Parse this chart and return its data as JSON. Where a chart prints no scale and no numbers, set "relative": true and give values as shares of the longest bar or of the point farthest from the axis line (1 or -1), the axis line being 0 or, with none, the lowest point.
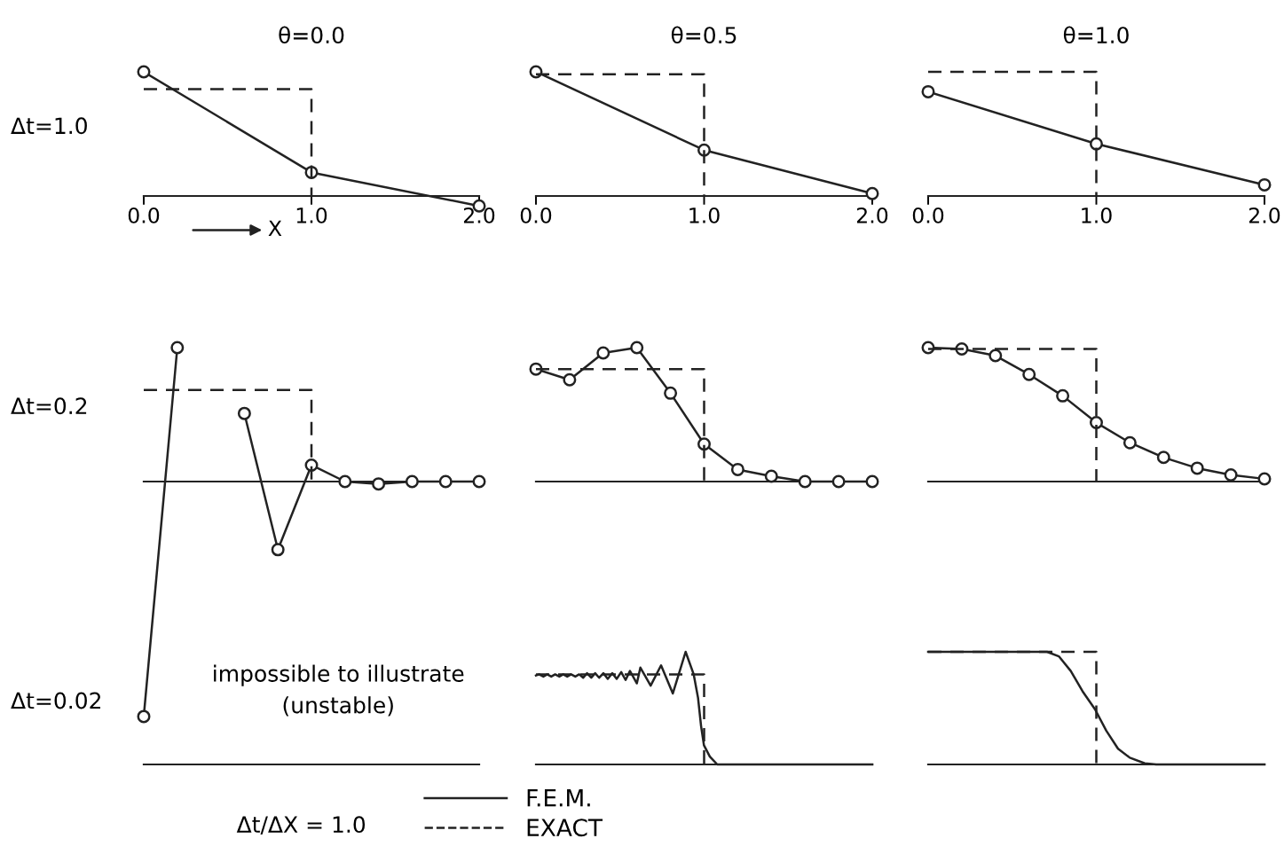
{
  "chart_data": [
    {
      "type": "line",
      "title": "θ=0.0",
      "ylabel": "Δt=1.0",
      "xlabel": "X",
      "relative": true,
      "xlim": [
        0,
        2
      ],
      "xticks": [
        {
          "value": 0,
          "label": "0.0"
        },
        {
          "value": 1,
          "label": "1.0"
        },
        {
          "value": 2,
          "label": "2.0"
        }
      ],
      "series": [
        {
          "color": "#222222",
          "marker": "circle",
          "line_style": "solid",
          "x": [
            0,
            1,
            2
          ],
          "values": [
            1,
            0.19,
            -0.08
          ]
        },
        {
          "color": "#222222",
          "line_style": "dashed",
          "x": [
            0,
            1,
            1
          ],
          "values": [
            0.86,
            0.86,
            0
          ]
        }
      ]
    },
    {
      "type": "line",
      "title": "θ=0.5",
      "relative": true,
      "xlim": [
        0,
        2
      ],
      "xticks": [
        {
          "value": 0,
          "label": "0.0"
        },
        {
          "value": 1,
          "label": "1.0"
        },
        {
          "value": 2,
          "label": "2.0"
        }
      ],
      "series": [
        {
          "color": "#222222",
          "marker": "circle",
          "line_style": "solid",
          "x": [
            0,
            1,
            2
          ],
          "values": [
            1,
            0.37,
            0.02
          ]
        },
        {
          "color": "#222222",
          "line_style": "dashed",
          "x": [
            0,
            1,
            1
          ],
          "values": [
            0.98,
            0.98,
            0
          ]
        }
      ]
    },
    {
      "type": "line",
      "title": "θ=1.0",
      "relative": true,
      "xlim": [
        0,
        2
      ],
      "xticks": [
        {
          "value": 0,
          "label": "0.0"
        },
        {
          "value": 1,
          "label": "1.0"
        },
        {
          "value": 2,
          "label": "2.0"
        }
      ],
      "series": [
        {
          "color": "#222222",
          "marker": "circle",
          "line_style": "solid",
          "x": [
            0,
            1,
            2
          ],
          "values": [
            0.84,
            0.42,
            0.09
          ]
        },
        {
          "color": "#222222",
          "line_style": "dashed",
          "x": [
            0,
            1,
            1
          ],
          "values": [
            1,
            1,
            0
          ]
        }
      ]
    },
    {
      "type": "line",
      "ylabel": "Δt=0.2",
      "relative": true,
      "xlim": [
        0,
        2
      ],
      "series": [
        {
          "color": "#222222",
          "marker": "circle",
          "line_style": "solid",
          "x": [
            0,
            0.2,
            0.4,
            0.6,
            0.8,
            1.0,
            1.2,
            1.4,
            1.6,
            1.8,
            2.0
          ],
          "values": [
            -1,
            0.57,
            null,
            0.29,
            -0.29,
            0.07,
            0,
            -0.01,
            0,
            0,
            0
          ]
        },
        {
          "color": "#222222",
          "line_style": "dashed",
          "x": [
            0,
            1,
            1
          ],
          "values": [
            0.39,
            0.39,
            0
          ]
        }
      ]
    },
    {
      "type": "line",
      "relative": true,
      "xlim": [
        0,
        2
      ],
      "series": [
        {
          "color": "#222222",
          "marker": "circle",
          "line_style": "solid",
          "x": [
            0,
            0.2,
            0.4,
            0.6,
            0.8,
            1.0,
            1.2,
            1.4,
            1.6,
            1.8,
            2.0
          ],
          "values": [
            0.84,
            0.76,
            0.96,
            1,
            0.66,
            0.28,
            0.09,
            0.04,
            0,
            0,
            0
          ]
        },
        {
          "color": "#222222",
          "line_style": "dashed",
          "x": [
            0,
            1,
            1
          ],
          "values": [
            0.84,
            0.84,
            0
          ]
        }
      ]
    },
    {
      "type": "line",
      "relative": true,
      "xlim": [
        0,
        2
      ],
      "series": [
        {
          "color": "#222222",
          "marker": "circle",
          "line_style": "solid",
          "x": [
            0,
            0.2,
            0.4,
            0.6,
            0.8,
            1.0,
            1.2,
            1.4,
            1.6,
            1.8,
            2.0
          ],
          "values": [
            1,
            0.99,
            0.94,
            0.8,
            0.64,
            0.44,
            0.29,
            0.18,
            0.1,
            0.05,
            0.02
          ]
        },
        {
          "color": "#222222",
          "line_style": "dashed",
          "x": [
            0,
            1,
            1
          ],
          "values": [
            0.99,
            0.99,
            0
          ]
        }
      ]
    },
    {
      "type": "other",
      "ylabel": "Δt=0.02",
      "annotations": [
        "impossible to illustrate\n(unstable)",
        "Δt/ΔX = 1.0"
      ]
    },
    {
      "type": "line",
      "relative": true,
      "xlim": [
        0,
        2
      ],
      "legend": "bottom",
      "series": [
        {
          "name": "F.E.M.",
          "color": "#222222",
          "line_style": "solid",
          "x": [
            0,
            0.019,
            0.044,
            0.067,
            0.091,
            0.114,
            0.139,
            0.162,
            0.186,
            0.209,
            0.234,
            0.257,
            0.281,
            0.304,
            0.329,
            0.352,
            0.376,
            0.401,
            0.427,
            0.454,
            0.48,
            0.507,
            0.533,
            0.559,
            0.6,
            0.621,
            0.682,
            0.744,
            0.814,
            0.89,
            0.938,
            0.964,
            0.982,
            0.999,
            1.034,
            1.078,
            2.0
          ],
          "values": [
            0.79,
            0.8,
            0.78,
            0.8,
            0.78,
            0.8,
            0.78,
            0.8,
            0.78,
            0.8,
            0.78,
            0.8,
            0.77,
            0.81,
            0.77,
            0.81,
            0.77,
            0.81,
            0.76,
            0.81,
            0.76,
            0.82,
            0.75,
            0.83,
            0.72,
            0.86,
            0.7,
            0.88,
            0.63,
            1,
            0.8,
            0.59,
            0.34,
            0.17,
            0.07,
            0,
            0
          ]
        },
        {
          "name": "EXACT",
          "color": "#222222",
          "line_style": "dashed",
          "x": [
            0,
            1,
            1
          ],
          "values": [
            0.8,
            0.8,
            0
          ]
        }
      ]
    },
    {
      "type": "line",
      "relative": true,
      "xlim": [
        0,
        2
      ],
      "series": [
        {
          "color": "#222222",
          "line_style": "solid",
          "x": [
            0,
            0.707,
            0.777,
            0.848,
            0.918,
            0.992,
            1.059,
            1.129,
            1.199,
            1.288,
            1.356,
            2.0
          ],
          "values": [
            1,
            1,
            0.96,
            0.83,
            0.65,
            0.49,
            0.3,
            0.14,
            0.06,
            0.01,
            0,
            0
          ]
        },
        {
          "color": "#222222",
          "line_style": "dashed",
          "x": [
            0,
            1,
            1
          ],
          "values": [
            1,
            1,
            0
          ]
        }
      ]
    }
  ]
}
